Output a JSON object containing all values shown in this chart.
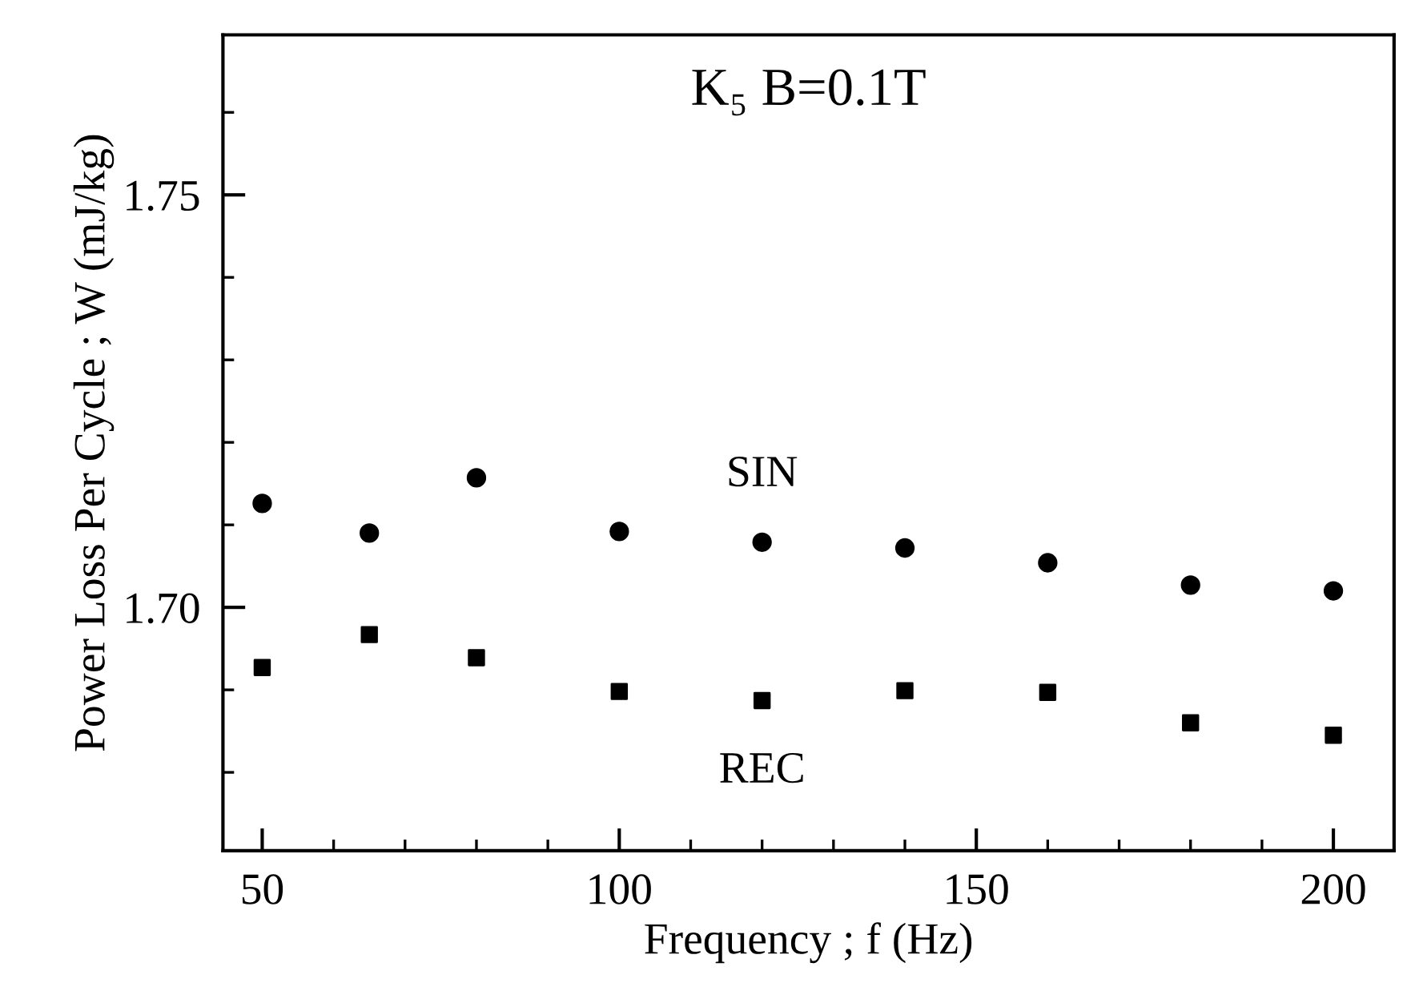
{
  "chart_data": {
    "type": "scatter",
    "title": "K₅ B=0.1T",
    "xlabel": "Frequency ; f (Hz)",
    "ylabel": "Power Loss Per Cycle ; W (mJ/kg)",
    "x": [
      50,
      65,
      80,
      100,
      120,
      140,
      160,
      180,
      200
    ],
    "series": [
      {
        "name": "SIN",
        "color": "#000000",
        "marker": "circle",
        "values": [
          1.7126,
          1.709,
          1.7157,
          1.7092,
          1.7079,
          1.7072,
          1.7054,
          1.7027,
          1.702
        ]
      },
      {
        "name": "REC",
        "color": "#000000",
        "marker": "square",
        "values": [
          1.6927,
          1.6967,
          1.6939,
          1.6898,
          1.6887,
          1.6899,
          1.6897,
          1.686,
          1.6845
        ]
      }
    ],
    "xlim": [
      44.5,
      208.5
    ],
    "ylim": [
      1.6705,
      1.7694
    ],
    "xticks": [
      50,
      100,
      150,
      200
    ],
    "yticks": [
      1.75,
      {
        "value": 1.7,
        "label": "1.70"
      }
    ],
    "grid": false,
    "legend": false
  }
}
